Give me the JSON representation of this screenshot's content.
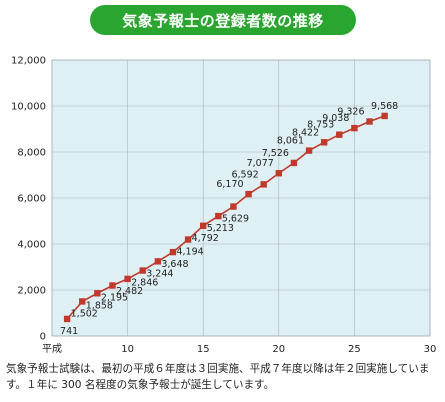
{
  "title": "気象予報士の登録者数の推移",
  "caption": "気象予報士試験は、最初の平成６年度は３回実施、平成７年度以降は年２回実施しています。１年に 300 名程度の気象予報士が誕生しています。",
  "colors": {
    "title_bg": "#2aa52f",
    "plot_bg": "#dff0f4",
    "line": "#c0392b",
    "marker": "#c0392b"
  },
  "chart_data": {
    "type": "line",
    "title": "気象予報士の登録者数の推移",
    "xlabel": "",
    "ylabel": "",
    "x_start_label": "平成",
    "xlim": [
      5,
      30
    ],
    "ylim": [
      0,
      12000
    ],
    "x_ticks": [
      10,
      15,
      20,
      25,
      30
    ],
    "y_ticks": [
      0,
      2000,
      4000,
      6000,
      8000,
      10000,
      12000
    ],
    "y_tick_labels": [
      "0",
      "2,000",
      "4,000",
      "6,000",
      "8,000",
      "10,000",
      "12,000"
    ],
    "grid": true,
    "series": [
      {
        "name": "",
        "points": [
          {
            "x": 6,
            "y": 741,
            "label": "741"
          },
          {
            "x": 7,
            "y": 1502,
            "label": "1,502"
          },
          {
            "x": 8,
            "y": 1858,
            "label": "1,858"
          },
          {
            "x": 9,
            "y": 2195,
            "label": "2,195"
          },
          {
            "x": 10,
            "y": 2482,
            "label": "2,482"
          },
          {
            "x": 11,
            "y": 2846,
            "label": "2,846"
          },
          {
            "x": 12,
            "y": 3244,
            "label": "3,244"
          },
          {
            "x": 13,
            "y": 3648,
            "label": "3,648"
          },
          {
            "x": 14,
            "y": 4194,
            "label": "4,194"
          },
          {
            "x": 15,
            "y": 4792,
            "label": "4,792"
          },
          {
            "x": 16,
            "y": 5213,
            "label": "5,213"
          },
          {
            "x": 17,
            "y": 5629,
            "label": "5,629"
          },
          {
            "x": 18,
            "y": 6170,
            "label": "6,170"
          },
          {
            "x": 19,
            "y": 6592,
            "label": "6,592"
          },
          {
            "x": 20,
            "y": 7077,
            "label": "7,077"
          },
          {
            "x": 21,
            "y": 7526,
            "label": "7,526"
          },
          {
            "x": 22,
            "y": 8061,
            "label": "8,061"
          },
          {
            "x": 23,
            "y": 8422,
            "label": "8,422"
          },
          {
            "x": 24,
            "y": 8753,
            "label": "8,753"
          },
          {
            "x": 25,
            "y": 9038,
            "label": "9,038"
          },
          {
            "x": 26,
            "y": 9326,
            "label": "9,326"
          },
          {
            "x": 27,
            "y": 9568,
            "label": "9,568"
          }
        ]
      }
    ]
  }
}
